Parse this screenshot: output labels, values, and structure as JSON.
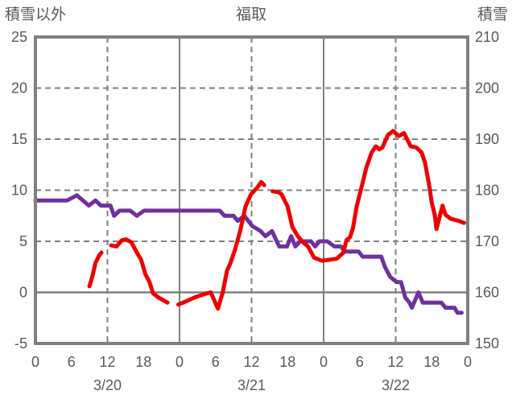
{
  "header": {
    "left_axis_title": "積雪以外",
    "chart_title": "福取",
    "right_axis_title": "積雪"
  },
  "colors": {
    "non_snow_line": "#ee0000",
    "snow_line": "#7030a0",
    "grid": "#808080",
    "text": "#595959"
  },
  "chart_data": {
    "type": "line",
    "title": "福取",
    "x_axis": {
      "unit": "hours from 3/20 00:00",
      "min": 0,
      "max": 72,
      "tick_step": 6,
      "tick_labels": [
        "0",
        "6",
        "12",
        "18",
        "0",
        "6",
        "12",
        "18",
        "0",
        "6",
        "12",
        "18",
        "0"
      ],
      "date_labels": [
        {
          "label": "3/20",
          "hour": 12
        },
        {
          "label": "3/21",
          "hour": 36
        },
        {
          "label": "3/22",
          "hour": 60
        }
      ]
    },
    "left_axis": {
      "title": "積雪以外",
      "min": -5,
      "max": 25,
      "tick_step": 5,
      "tick_labels": [
        "25",
        "20",
        "15",
        "10",
        "5",
        "0",
        "-5"
      ]
    },
    "right_axis": {
      "title": "積雪",
      "min": 150,
      "max": 210,
      "tick_step": 10,
      "tick_labels": [
        "210",
        "200",
        "190",
        "180",
        "170",
        "160",
        "150"
      ]
    },
    "grid": {
      "horizontal_dashed_left_values": [
        20,
        15,
        10,
        5
      ],
      "horizontal_solid_left_values": [
        0
      ],
      "vertical_dashed_hours": [
        12,
        36,
        60
      ],
      "vertical_solid_hours": [
        24,
        48
      ],
      "legend": "none"
    },
    "series": [
      {
        "name": "積雪",
        "axis": "right",
        "color": "#7030a0",
        "points": [
          [
            0,
            178
          ],
          [
            5.3,
            178
          ],
          [
            6.9,
            179
          ],
          [
            8.9,
            177
          ],
          [
            10,
            178
          ],
          [
            10.9,
            177
          ],
          [
            12.5,
            177
          ],
          [
            13.1,
            175
          ],
          [
            14,
            176
          ],
          [
            15.8,
            176
          ],
          [
            16.9,
            175
          ],
          [
            18.1,
            176
          ],
          [
            30.7,
            176
          ],
          [
            31.5,
            175
          ],
          [
            33,
            175
          ],
          [
            33.7,
            174
          ],
          [
            34.8,
            175
          ],
          [
            36.1,
            173
          ],
          [
            37.5,
            172
          ],
          [
            38.3,
            171
          ],
          [
            39.4,
            172
          ],
          [
            40.6,
            169
          ],
          [
            41.9,
            169
          ],
          [
            42.6,
            171
          ],
          [
            43.3,
            169
          ],
          [
            44.1,
            170
          ],
          [
            45.9,
            170
          ],
          [
            46.6,
            169
          ],
          [
            47.3,
            170
          ],
          [
            48.6,
            170
          ],
          [
            49.8,
            169
          ],
          [
            50.9,
            169
          ],
          [
            51.5,
            168
          ],
          [
            53.8,
            168
          ],
          [
            54.5,
            167
          ],
          [
            57.6,
            167
          ],
          [
            58.2,
            165
          ],
          [
            59.1,
            163
          ],
          [
            60.2,
            162
          ],
          [
            60.9,
            162
          ],
          [
            61.6,
            159
          ],
          [
            62.3,
            158
          ],
          [
            62.7,
            157
          ],
          [
            63.8,
            160
          ],
          [
            64.5,
            158
          ],
          [
            67.6,
            158
          ],
          [
            68.3,
            157
          ],
          [
            69.8,
            157
          ],
          [
            70.3,
            156
          ],
          [
            71,
            156
          ]
        ]
      },
      {
        "name": "積雪以外",
        "axis": "left",
        "color": "#ee0000",
        "points": [
          [
            9,
            0.6
          ],
          [
            9.5,
            1.6
          ],
          [
            10,
            2.9
          ],
          [
            10.6,
            3.6
          ],
          [
            11,
            3.9
          ],
          null,
          [
            12.6,
            4.6
          ],
          [
            13.5,
            4.5
          ],
          [
            14.4,
            5.1
          ],
          [
            15.1,
            5.2
          ],
          [
            16,
            4.9
          ],
          [
            16.9,
            3.9
          ],
          [
            17.6,
            3.2
          ],
          [
            18.3,
            1.8
          ],
          [
            19,
            1.0
          ],
          [
            19.6,
            -0.1
          ],
          [
            20.5,
            -0.5
          ],
          [
            21.4,
            -0.8
          ],
          [
            22,
            -1.0
          ],
          null,
          [
            23.8,
            -1.2
          ],
          [
            25,
            -0.9
          ],
          [
            26.5,
            -0.5
          ],
          [
            27.5,
            -0.3
          ],
          [
            28.5,
            -0.1
          ],
          [
            29.2,
            0.0
          ],
          [
            30.1,
            -1.2
          ],
          [
            30.4,
            -1.6
          ],
          [
            31.2,
            0.0
          ],
          [
            31.9,
            2.1
          ],
          [
            32.5,
            2.9
          ],
          [
            33.2,
            4.1
          ],
          [
            34.1,
            6.0
          ],
          [
            35,
            8.4
          ],
          [
            35.9,
            9.6
          ],
          [
            37,
            10.3
          ],
          [
            37.6,
            10.8
          ],
          [
            38.1,
            10.5
          ],
          null,
          [
            39.5,
            9.9
          ],
          [
            40.5,
            9.8
          ],
          [
            41,
            9.6
          ],
          [
            42,
            8.4
          ],
          [
            42.8,
            6.4
          ],
          [
            43.7,
            5.5
          ],
          [
            44.6,
            4.9
          ],
          [
            45.4,
            4.5
          ],
          [
            46.4,
            3.4
          ],
          [
            47.7,
            3.1
          ],
          [
            49,
            3.2
          ],
          [
            50.2,
            3.3
          ],
          [
            51.3,
            3.9
          ],
          [
            51.8,
            5.1
          ],
          [
            52.4,
            5.4
          ],
          [
            52.9,
            6.3
          ],
          [
            53.5,
            8.4
          ],
          [
            54.2,
            10.0
          ],
          [
            55.1,
            12.2
          ],
          [
            56,
            13.7
          ],
          [
            56.7,
            14.3
          ],
          [
            57.3,
            14.0
          ],
          [
            57.8,
            14.2
          ],
          [
            58.7,
            15.4
          ],
          [
            59.6,
            15.8
          ],
          [
            60.5,
            15.3
          ],
          [
            61.4,
            15.6
          ],
          [
            62.5,
            14.3
          ],
          [
            63.4,
            14.2
          ],
          [
            64.3,
            13.7
          ],
          [
            64.9,
            12.7
          ],
          [
            65.6,
            10.4
          ],
          [
            66,
            8.8
          ],
          [
            66.5,
            7.6
          ],
          [
            66.8,
            6.2
          ],
          [
            67.8,
            8.5
          ],
          [
            68.3,
            7.6
          ],
          [
            69.2,
            7.2
          ],
          [
            70.5,
            7.0
          ],
          [
            71.4,
            6.8
          ]
        ]
      }
    ]
  }
}
